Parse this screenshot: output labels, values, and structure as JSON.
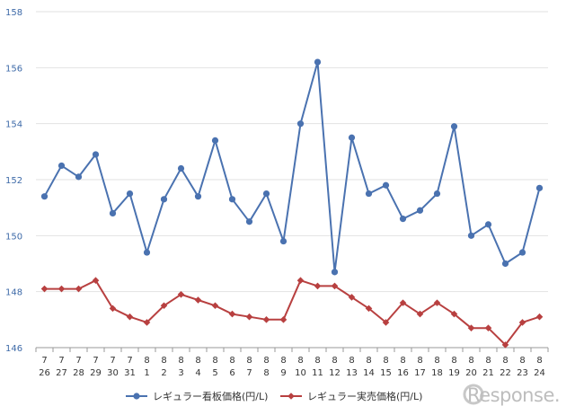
{
  "chart_data": {
    "type": "line",
    "categories": [
      [
        "7",
        "26"
      ],
      [
        "7",
        "27"
      ],
      [
        "7",
        "28"
      ],
      [
        "7",
        "29"
      ],
      [
        "7",
        "30"
      ],
      [
        "7",
        "31"
      ],
      [
        "8",
        "1"
      ],
      [
        "8",
        "2"
      ],
      [
        "8",
        "3"
      ],
      [
        "8",
        "4"
      ],
      [
        "8",
        "5"
      ],
      [
        "8",
        "6"
      ],
      [
        "8",
        "7"
      ],
      [
        "8",
        "8"
      ],
      [
        "8",
        "9"
      ],
      [
        "8",
        "10"
      ],
      [
        "8",
        "11"
      ],
      [
        "8",
        "12"
      ],
      [
        "8",
        "13"
      ],
      [
        "8",
        "14"
      ],
      [
        "8",
        "15"
      ],
      [
        "8",
        "16"
      ],
      [
        "8",
        "17"
      ],
      [
        "8",
        "18"
      ],
      [
        "8",
        "19"
      ],
      [
        "8",
        "20"
      ],
      [
        "8",
        "21"
      ],
      [
        "8",
        "22"
      ],
      [
        "8",
        "23"
      ],
      [
        "8",
        "24"
      ]
    ],
    "series": [
      {
        "name": "レギュラー看板価格(円/L)",
        "color": "#4a72b0",
        "marker": "circle",
        "values": [
          151.4,
          152.5,
          152.1,
          152.9,
          150.8,
          151.5,
          149.4,
          151.3,
          152.4,
          151.4,
          153.4,
          151.3,
          150.5,
          151.5,
          149.8,
          154.0,
          156.2,
          148.7,
          153.5,
          151.5,
          151.8,
          150.6,
          150.9,
          151.5,
          153.9,
          150.0,
          150.4,
          149.0,
          149.4,
          151.7
        ]
      },
      {
        "name": "レギュラー実売価格(円/L)",
        "color": "#b84040",
        "marker": "diamond",
        "values": [
          148.1,
          148.1,
          148.1,
          148.4,
          147.4,
          147.1,
          146.9,
          147.5,
          147.9,
          147.7,
          147.5,
          147.2,
          147.1,
          147.0,
          147.0,
          148.4,
          148.2,
          148.2,
          147.8,
          147.4,
          146.9,
          147.6,
          147.2,
          147.6,
          147.2,
          146.7,
          146.7,
          146.1,
          146.9,
          147.1
        ]
      }
    ],
    "yticks": [
      146,
      148,
      150,
      152,
      154,
      156,
      158
    ],
    "ylim": [
      146,
      158
    ],
    "grid": true,
    "legend_position": "bottom",
    "xlabel": "",
    "ylabel": ""
  },
  "watermark": {
    "text": "Response."
  }
}
